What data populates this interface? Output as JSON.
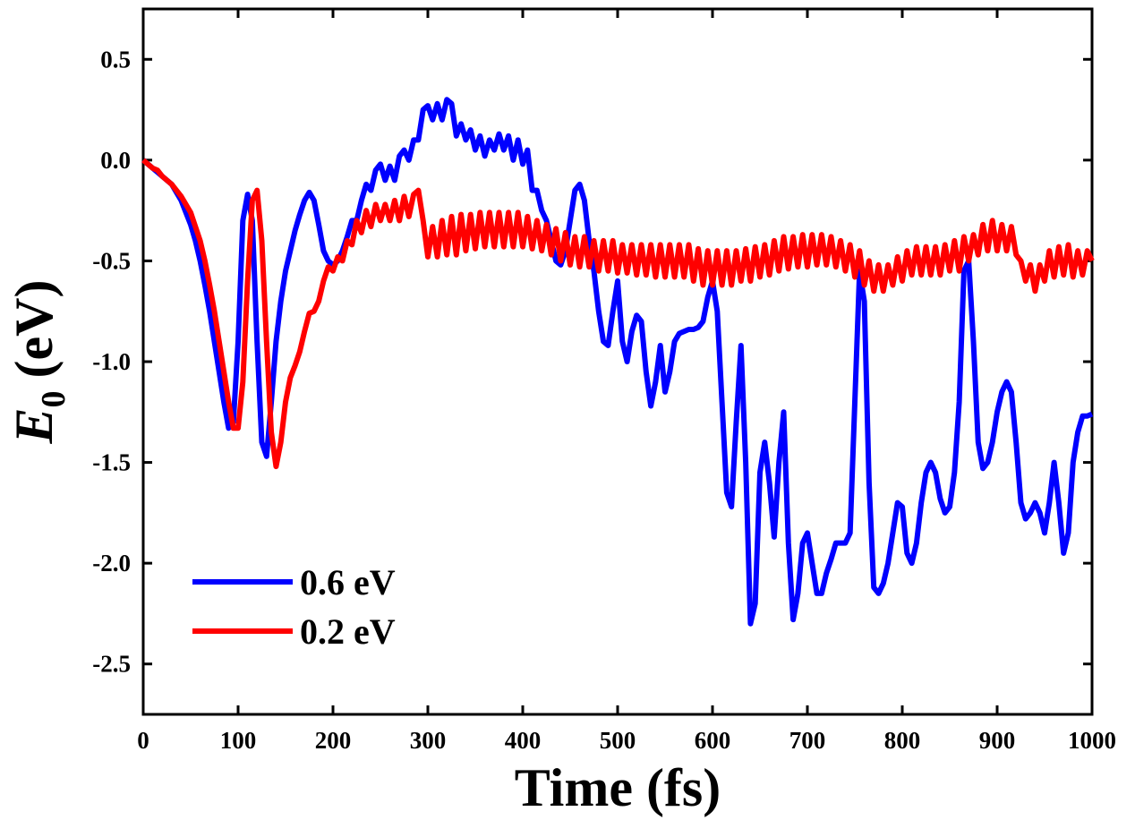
{
  "chart_data": {
    "type": "line",
    "x_label": "Time (fs)",
    "y_label_symbol": "E",
    "y_label_subscript": "0",
    "y_label_unit": "(eV)",
    "xlim": [
      0,
      1000
    ],
    "xticks": [
      0,
      100,
      200,
      300,
      400,
      500,
      600,
      700,
      800,
      900,
      1000
    ],
    "ylim": [
      -2.75,
      0.75
    ],
    "yticks": [
      0.5,
      {
        "value": 0,
        "label": "0.0"
      },
      -0.5,
      {
        "value": -1,
        "label": "-1.0"
      },
      -1.5,
      {
        "value": -2,
        "label": "-2.0"
      },
      -2.5
    ],
    "legend": "lower left",
    "x": [
      0,
      5,
      10,
      15,
      20,
      25,
      30,
      35,
      40,
      45,
      50,
      55,
      60,
      65,
      70,
      75,
      80,
      85,
      90,
      95,
      100,
      105,
      110,
      115,
      120,
      125,
      130,
      135,
      140,
      145,
      150,
      155,
      160,
      165,
      170,
      175,
      180,
      185,
      190,
      195,
      200,
      205,
      210,
      215,
      220,
      225,
      230,
      235,
      240,
      245,
      250,
      255,
      260,
      265,
      270,
      275,
      280,
      285,
      290,
      295,
      300,
      305,
      310,
      315,
      320,
      325,
      330,
      335,
      340,
      345,
      350,
      355,
      360,
      365,
      370,
      375,
      380,
      385,
      390,
      395,
      400,
      405,
      410,
      415,
      420,
      425,
      430,
      435,
      440,
      445,
      450,
      455,
      460,
      465,
      470,
      475,
      480,
      485,
      490,
      495,
      500,
      505,
      510,
      515,
      520,
      525,
      530,
      535,
      540,
      545,
      550,
      555,
      560,
      565,
      570,
      575,
      580,
      585,
      590,
      595,
      600,
      605,
      610,
      615,
      620,
      625,
      630,
      635,
      640,
      645,
      650,
      655,
      660,
      665,
      670,
      675,
      680,
      685,
      690,
      695,
      700,
      705,
      710,
      715,
      720,
      725,
      730,
      735,
      740,
      745,
      750,
      755,
      760,
      765,
      770,
      775,
      780,
      785,
      790,
      795,
      800,
      805,
      810,
      815,
      820,
      825,
      830,
      835,
      840,
      845,
      850,
      855,
      860,
      865,
      870,
      875,
      880,
      885,
      890,
      895,
      900,
      905,
      910,
      915,
      920,
      925,
      930,
      935,
      940,
      945,
      950,
      955,
      960,
      965,
      970,
      975,
      980,
      985,
      990,
      995,
      1000
    ],
    "series": [
      {
        "name": "0.6 eV",
        "color": "#0000ff",
        "values": [
          0,
          -0.02,
          -0.04,
          -0.06,
          -0.08,
          -0.1,
          -0.12,
          -0.16,
          -0.2,
          -0.26,
          -0.32,
          -0.4,
          -0.5,
          -0.62,
          -0.75,
          -0.9,
          -1.05,
          -1.2,
          -1.33,
          -1.3,
          -0.9,
          -0.3,
          -0.17,
          -0.3,
          -0.9,
          -1.4,
          -1.47,
          -1.2,
          -0.9,
          -0.7,
          -0.55,
          -0.45,
          -0.35,
          -0.27,
          -0.2,
          -0.16,
          -0.2,
          -0.32,
          -0.45,
          -0.5,
          -0.52,
          -0.5,
          -0.45,
          -0.38,
          -0.3,
          -0.3,
          -0.2,
          -0.12,
          -0.15,
          -0.05,
          -0.02,
          -0.1,
          -0.03,
          -0.1,
          0.02,
          0.05,
          0,
          0.1,
          0.1,
          0.25,
          0.27,
          0.2,
          0.28,
          0.2,
          0.3,
          0.28,
          0.12,
          0.18,
          0.1,
          0.15,
          0.05,
          0.12,
          0.02,
          0.1,
          0.05,
          0.13,
          0.05,
          0.12,
          0,
          0.1,
          -0.02,
          0.05,
          -0.15,
          -0.15,
          -0.25,
          -0.3,
          -0.4,
          -0.5,
          -0.52,
          -0.45,
          -0.3,
          -0.15,
          -0.12,
          -0.2,
          -0.4,
          -0.55,
          -0.75,
          -0.9,
          -0.92,
          -0.75,
          -0.6,
          -0.9,
          -1,
          -0.85,
          -0.77,
          -0.8,
          -1.05,
          -1.22,
          -1.1,
          -0.92,
          -1.15,
          -1.05,
          -0.9,
          -0.86,
          -0.85,
          -0.84,
          -0.84,
          -0.83,
          -0.8,
          -0.68,
          -0.6,
          -0.75,
          -1.2,
          -1.65,
          -1.72,
          -1.3,
          -0.92,
          -1.5,
          -2.3,
          -2.2,
          -1.55,
          -1.4,
          -1.6,
          -1.87,
          -1.5,
          -1.25,
          -1.9,
          -2.28,
          -2.15,
          -1.9,
          -1.85,
          -2,
          -2.15,
          -2.15,
          -2.05,
          -1.98,
          -1.9,
          -1.9,
          -1.9,
          -1.85,
          -1.2,
          -0.55,
          -0.7,
          -1.6,
          -2.12,
          -2.15,
          -2.1,
          -2,
          -1.85,
          -1.7,
          -1.72,
          -1.95,
          -2,
          -1.9,
          -1.7,
          -1.55,
          -1.5,
          -1.55,
          -1.68,
          -1.75,
          -1.72,
          -1.55,
          -1.2,
          -0.55,
          -0.5,
          -0.9,
          -1.4,
          -1.53,
          -1.5,
          -1.4,
          -1.25,
          -1.15,
          -1.1,
          -1.15,
          -1.4,
          -1.7,
          -1.78,
          -1.75,
          -1.7,
          -1.75,
          -1.85,
          -1.7,
          -1.5,
          -1.7,
          -1.95,
          -1.85,
          -1.5,
          -1.35,
          -1.27,
          -1.27,
          -1.26
        ]
      },
      {
        "name": "0.2 eV",
        "color": "#ff0000",
        "values": [
          0,
          -0.02,
          -0.04,
          -0.05,
          -0.08,
          -0.1,
          -0.12,
          -0.15,
          -0.18,
          -0.22,
          -0.26,
          -0.33,
          -0.4,
          -0.5,
          -0.62,
          -0.75,
          -0.9,
          -1.05,
          -1.2,
          -1.33,
          -1.33,
          -1.1,
          -0.6,
          -0.2,
          -0.15,
          -0.4,
          -0.9,
          -1.35,
          -1.52,
          -1.4,
          -1.2,
          -1.08,
          -1.02,
          -0.95,
          -0.85,
          -0.76,
          -0.75,
          -0.7,
          -0.6,
          -0.53,
          -0.55,
          -0.48,
          -0.5,
          -0.4,
          -0.42,
          -0.3,
          -0.36,
          -0.25,
          -0.33,
          -0.22,
          -0.3,
          -0.22,
          -0.3,
          -0.2,
          -0.3,
          -0.18,
          -0.28,
          -0.17,
          -0.15,
          -0.3,
          -0.48,
          -0.33,
          -0.48,
          -0.3,
          -0.47,
          -0.28,
          -0.47,
          -0.27,
          -0.45,
          -0.27,
          -0.44,
          -0.26,
          -0.43,
          -0.26,
          -0.43,
          -0.26,
          -0.43,
          -0.26,
          -0.43,
          -0.26,
          -0.43,
          -0.28,
          -0.44,
          -0.3,
          -0.45,
          -0.32,
          -0.47,
          -0.34,
          -0.5,
          -0.36,
          -0.52,
          -0.38,
          -0.53,
          -0.38,
          -0.53,
          -0.4,
          -0.55,
          -0.4,
          -0.55,
          -0.4,
          -0.56,
          -0.42,
          -0.56,
          -0.42,
          -0.57,
          -0.42,
          -0.57,
          -0.42,
          -0.58,
          -0.42,
          -0.58,
          -0.42,
          -0.58,
          -0.42,
          -0.58,
          -0.42,
          -0.6,
          -0.44,
          -0.62,
          -0.45,
          -0.62,
          -0.45,
          -0.62,
          -0.45,
          -0.62,
          -0.45,
          -0.6,
          -0.44,
          -0.6,
          -0.43,
          -0.58,
          -0.42,
          -0.57,
          -0.4,
          -0.55,
          -0.38,
          -0.54,
          -0.38,
          -0.53,
          -0.37,
          -0.53,
          -0.37,
          -0.52,
          -0.37,
          -0.52,
          -0.38,
          -0.53,
          -0.4,
          -0.55,
          -0.42,
          -0.58,
          -0.45,
          -0.62,
          -0.5,
          -0.65,
          -0.52,
          -0.65,
          -0.52,
          -0.62,
          -0.48,
          -0.6,
          -0.45,
          -0.57,
          -0.43,
          -0.57,
          -0.43,
          -0.57,
          -0.43,
          -0.57,
          -0.42,
          -0.55,
          -0.4,
          -0.55,
          -0.38,
          -0.5,
          -0.37,
          -0.47,
          -0.32,
          -0.45,
          -0.3,
          -0.45,
          -0.32,
          -0.45,
          -0.33,
          -0.47,
          -0.5,
          -0.6,
          -0.52,
          -0.65,
          -0.52,
          -0.6,
          -0.45,
          -0.58,
          -0.43,
          -0.57,
          -0.42,
          -0.58,
          -0.45,
          -0.57,
          -0.45,
          -0.5
        ]
      }
    ]
  }
}
